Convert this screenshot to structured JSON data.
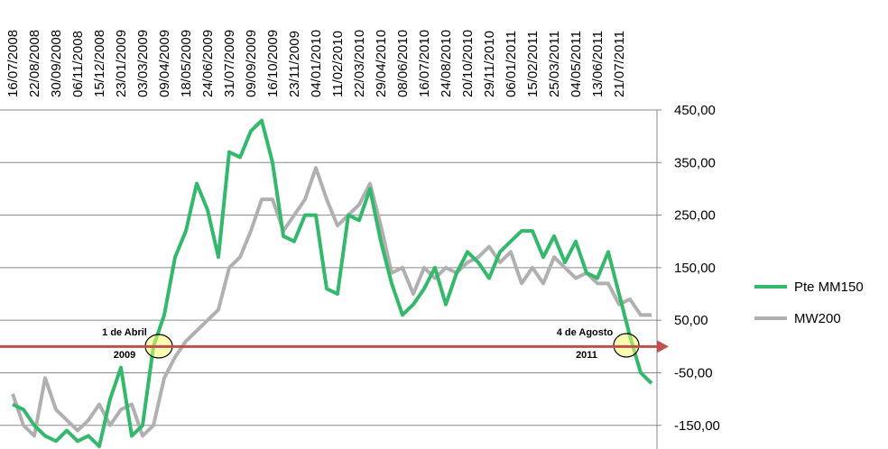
{
  "chart_data": {
    "type": "line",
    "categories": [
      "16/07/2008",
      null,
      "22/08/2008",
      null,
      "30/09/2008",
      null,
      "06/11/2008",
      null,
      "15/12/2008",
      null,
      "23/01/2009",
      null,
      "03/03/2009",
      null,
      "09/04/2009",
      null,
      "18/05/2009",
      null,
      "24/06/2009",
      null,
      "31/07/2009",
      null,
      "09/09/2009",
      null,
      "16/10/2009",
      null,
      "23/11/2009",
      null,
      "04/01/2010",
      null,
      "11/02/2010",
      null,
      "22/03/2010",
      null,
      "29/04/2010",
      null,
      "08/06/2010",
      null,
      "16/07/2010",
      null,
      "24/08/2010",
      null,
      "20/10/2010",
      null,
      "29/11/2010",
      null,
      "06/01/2011",
      null,
      "15/02/2011",
      null,
      "25/03/2011",
      null,
      "04/05/2011",
      null,
      "13/06/2011",
      null,
      "21/07/2011",
      null,
      null,
      null
    ],
    "series": [
      {
        "name": "Pte MM150",
        "color": "#33b86c",
        "values": [
          -110,
          -120,
          -150,
          -170,
          -180,
          -160,
          -180,
          -170,
          -190,
          -100,
          -40,
          -170,
          -150,
          0,
          60,
          170,
          220,
          310,
          260,
          170,
          370,
          360,
          410,
          430,
          350,
          210,
          200,
          250,
          250,
          110,
          100,
          250,
          240,
          300,
          200,
          120,
          60,
          80,
          110,
          150,
          80,
          140,
          180,
          160,
          130,
          180,
          200,
          220,
          220,
          170,
          210,
          160,
          200,
          140,
          130,
          180,
          100,
          20,
          -50,
          -70
        ]
      },
      {
        "name": "MW200",
        "color": "#b0b0b0",
        "values": [
          -90,
          -150,
          -170,
          -60,
          -120,
          -140,
          -160,
          -140,
          -110,
          -150,
          -120,
          -110,
          -170,
          -150,
          -60,
          -20,
          10,
          30,
          50,
          70,
          150,
          170,
          220,
          280,
          280,
          220,
          250,
          280,
          340,
          280,
          230,
          250,
          270,
          310,
          230,
          140,
          150,
          100,
          150,
          130,
          150,
          140,
          160,
          170,
          190,
          160,
          180,
          120,
          150,
          120,
          170,
          150,
          130,
          140,
          120,
          120,
          80,
          90,
          60,
          60
        ]
      }
    ],
    "ylim": [
      -195,
      450
    ],
    "yticks": [
      {
        "value": -150,
        "label": "-150,00"
      },
      {
        "value": -50,
        "label": "-50,00"
      },
      {
        "value": 50,
        "label": "50,00"
      },
      {
        "value": 150,
        "label": "150,00"
      },
      {
        "value": 250,
        "label": "250,00"
      },
      {
        "value": 350,
        "label": "350,00"
      },
      {
        "value": 450,
        "label": "450,00"
      }
    ],
    "grid": true,
    "negative_tick_color": "#ff0000",
    "reference_line": {
      "value": 0,
      "color": "#c0504d"
    },
    "annotations": [
      "1 de Abril",
      "2009",
      "4 de Agosto",
      "2011"
    ],
    "legend": "right"
  }
}
